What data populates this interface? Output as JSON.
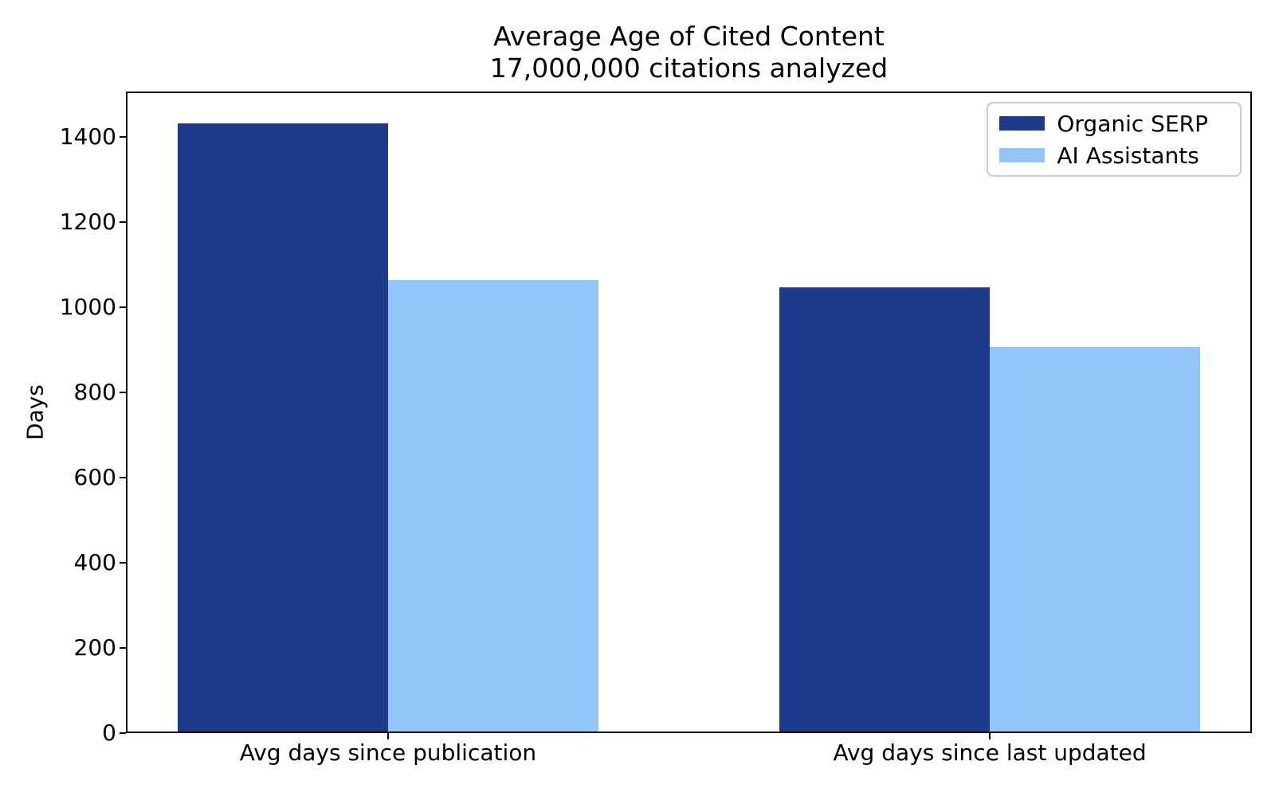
{
  "chart_data": {
    "type": "bar",
    "title": "Average Age of Cited Content",
    "subtitle": "17,000,000 citations analyzed",
    "ylabel": "Days",
    "xlabel": "",
    "categories": [
      "Avg days since publication",
      "Avg days since last updated"
    ],
    "series": [
      {
        "name": "Organic SERP",
        "color": "#1e3a8a",
        "values": [
          1432,
          1047
        ]
      },
      {
        "name": "AI Assistants",
        "color": "#92c5f8",
        "values": [
          1064,
          907
        ]
      }
    ],
    "yticks": [
      0,
      200,
      400,
      600,
      800,
      1000,
      1200,
      1400
    ],
    "ylim": [
      0,
      1507
    ],
    "grid": false,
    "legend_position": "upper right",
    "colors": {
      "axis": "#000000",
      "text": "#000000",
      "legend_border": "#cccccc",
      "background": "#ffffff"
    }
  }
}
